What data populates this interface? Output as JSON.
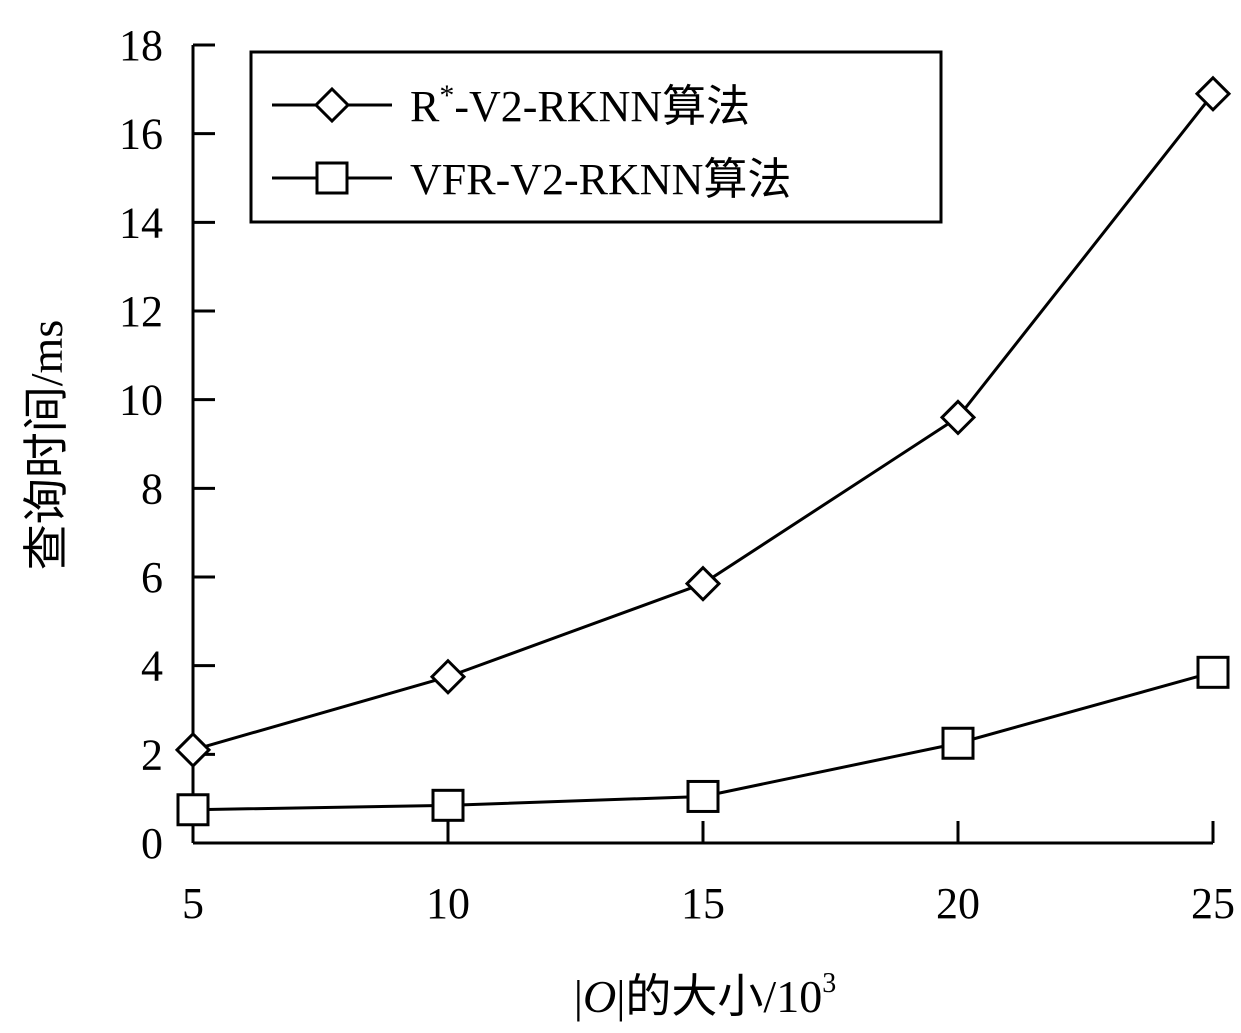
{
  "chart_data": {
    "type": "line",
    "x": [
      5,
      10,
      15,
      20,
      25
    ],
    "xlim": [
      5,
      25
    ],
    "ylim": [
      0,
      18
    ],
    "xticks": [
      5,
      10,
      15,
      20,
      25
    ],
    "yticks": [
      0,
      2,
      4,
      6,
      8,
      10,
      12,
      14,
      16,
      18
    ],
    "xlabel": "|O|的大小/10³",
    "ylabel": "查询时间/ms",
    "grid": false,
    "legend_position": "top-left",
    "series": [
      {
        "name": "R*-V2-RKNN算法",
        "marker": "diamond",
        "values": [
          2.1,
          3.75,
          5.85,
          9.6,
          16.9
        ]
      },
      {
        "name": "VFR-V2-RKNN算法",
        "marker": "square",
        "values": [
          0.75,
          0.85,
          1.05,
          2.25,
          3.85
        ]
      }
    ],
    "line_color": "#000000"
  }
}
